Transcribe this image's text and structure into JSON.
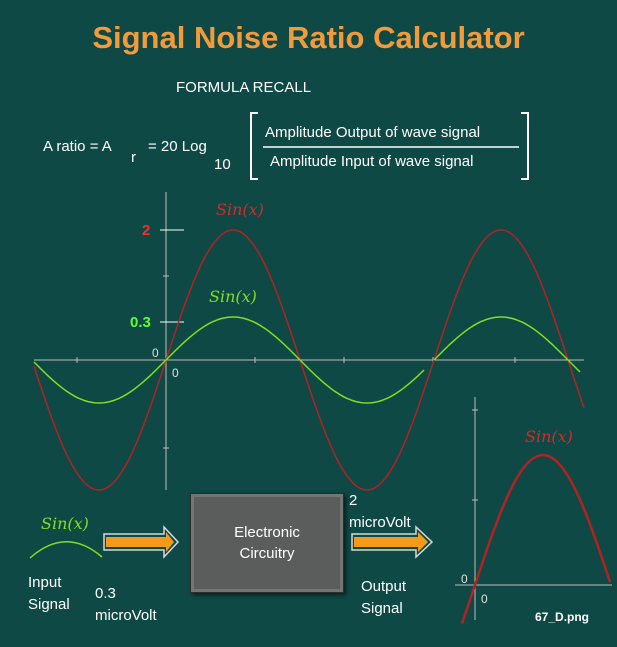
{
  "title": "Signal Noise Ratio Calculator",
  "formula": {
    "heading": "FORMULA RECALL",
    "lhs": "A ratio = A",
    "sub_r": "r",
    "eq_log": "= 20 Log",
    "sub_10": "10",
    "numerator": "Amplitude Output of wave signal",
    "denominator": "Amplitude Input of wave signal"
  },
  "main_chart": {
    "y_tick_output": "2",
    "y_tick_input": "0.3",
    "origin_y": "0",
    "origin_x": "0",
    "output_label": "Sin(x)",
    "input_label": "Sin(x)",
    "colors": {
      "output": "#b22222",
      "input": "#7fe01e",
      "axes": "#bdbdbd",
      "output_tick": "#ff2a2a",
      "input_tick": "#5fff2a"
    }
  },
  "input_section": {
    "curve_label": "Sin(x)",
    "caption": "Input\nSignal",
    "value": "0.3\nmicroVolt"
  },
  "block": {
    "label": "Electronic\nCircuitry"
  },
  "output_section": {
    "value": "2\nmicroVolt",
    "caption": "Output\nSignal"
  },
  "mini_chart": {
    "curve_label": "Sin(x)",
    "origin_y": "0",
    "origin_x": "0"
  },
  "arrow_color": "#f39a1a",
  "filename": "67_D.png"
}
